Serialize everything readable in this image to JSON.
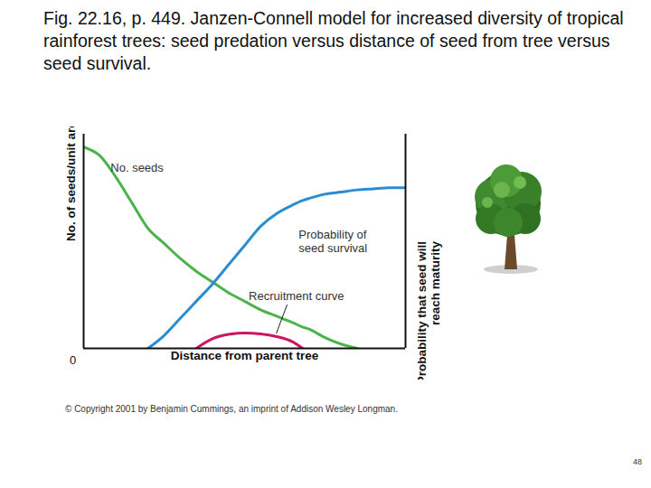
{
  "chart_data": {
    "type": "line",
    "title": "Fig. 22.16, p. 449.  Janzen-Connell model for increased diversity of tropical rainforest trees: seed predation versus distance of seed from tree versus seed survival.",
    "xlabel": "Distance from parent tree",
    "ylabel": "No. of seeds/unit area",
    "y2label": "Probability that seed will\nreach maturity",
    "caption": "© Copyright 2001 by Benjamin Cummings, an imprint of Addison Wesley Longman.",
    "slide_number": 48,
    "x": [
      0,
      5,
      10,
      15,
      20,
      25,
      30,
      35,
      40,
      45,
      50,
      55,
      60,
      65,
      68,
      70,
      75,
      80,
      85,
      90,
      95,
      100
    ],
    "xlim": [
      0,
      100
    ],
    "xticks": [
      0
    ],
    "ylim": [
      0,
      100
    ],
    "yticks": [],
    "y2lim": [
      0,
      100
    ],
    "y2ticks": [],
    "tick_labels": "x",
    "series": [
      {
        "name": "No. seeds",
        "color": "#4cb34c",
        "values": [
          94,
          90,
          80,
          68,
          56,
          49,
          42,
          36,
          31,
          26,
          22,
          18,
          15,
          12,
          10,
          9,
          5,
          2,
          0,
          null,
          null,
          null
        ]
      },
      {
        "name": "Probability of\nseed survival",
        "color": "#2a8cd2",
        "axis": "y2",
        "values": [
          null,
          null,
          null,
          null,
          0,
          6,
          14,
          22,
          30,
          39,
          48,
          57,
          63,
          67,
          69,
          70,
          72,
          73,
          74,
          74.5,
          75,
          75
        ]
      },
      {
        "name": "Recruitment curve",
        "color": "#cc1660",
        "values": [
          null,
          null,
          null,
          null,
          null,
          null,
          null,
          0,
          4.5,
          6.5,
          7.2,
          6.8,
          5.5,
          3,
          0,
          null,
          null,
          null,
          null,
          null,
          null,
          null
        ]
      }
    ]
  }
}
